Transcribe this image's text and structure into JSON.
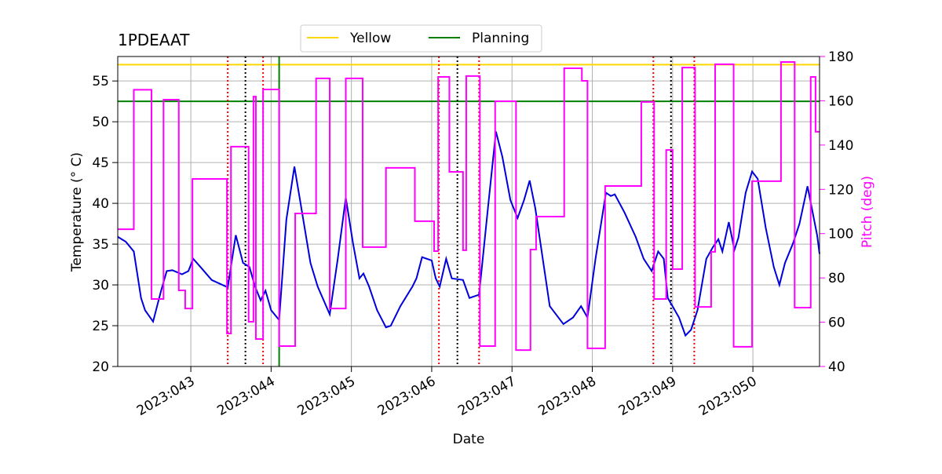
{
  "chart_data": {
    "type": "line",
    "title": "1PDEAAT",
    "xlabel": "Date",
    "ylabel": "Temperature (° C)",
    "y2label": "Pitch (deg)",
    "y2color": "#ff00ff",
    "xlim": [
      42.09,
      50.83
    ],
    "xticks": [
      {
        "value": 43,
        "label": "2023:043"
      },
      {
        "value": 44,
        "label": "2023:044"
      },
      {
        "value": 45,
        "label": "2023:045"
      },
      {
        "value": 46,
        "label": "2023:046"
      },
      {
        "value": 47,
        "label": "2023:047"
      },
      {
        "value": 48,
        "label": "2023:048"
      },
      {
        "value": 49,
        "label": "2023:049"
      },
      {
        "value": 50,
        "label": "2023:050"
      }
    ],
    "ylim": [
      20,
      58
    ],
    "yticks": [
      20,
      25,
      30,
      35,
      40,
      45,
      50,
      55
    ],
    "y2lim": [
      40,
      180
    ],
    "y2ticks": [
      40,
      60,
      80,
      100,
      120,
      140,
      160,
      180
    ],
    "grid": true,
    "legend": "top",
    "hlines": [
      {
        "name": "Yellow",
        "value": 57,
        "color": "#ffd700"
      },
      {
        "name": "Planning",
        "value": 52.5,
        "color": "#008000"
      }
    ],
    "vlines": [
      {
        "x": 43.46,
        "color": "#ff0000",
        "style": "dotted"
      },
      {
        "x": 43.9,
        "color": "#ff0000",
        "style": "dotted"
      },
      {
        "x": 46.09,
        "color": "#ff0000",
        "style": "dotted"
      },
      {
        "x": 46.59,
        "color": "#ff0000",
        "style": "dotted"
      },
      {
        "x": 48.76,
        "color": "#ff0000",
        "style": "dotted"
      },
      {
        "x": 49.27,
        "color": "#ff0000",
        "style": "dotted"
      },
      {
        "x": 43.68,
        "color": "#000000",
        "style": "dotted"
      },
      {
        "x": 46.32,
        "color": "#000000",
        "style": "dotted"
      },
      {
        "x": 48.98,
        "color": "#000000",
        "style": "dotted"
      },
      {
        "x": 44.1,
        "color": "#008000",
        "style": "solid"
      }
    ],
    "series": [
      {
        "color": "#0000dd",
        "axis": "y",
        "step": false,
        "x": [
          42.09,
          42.19,
          42.29,
          42.38,
          42.43,
          42.53,
          42.63,
          42.7,
          42.77,
          42.89,
          42.97,
          43.03,
          43.12,
          43.26,
          43.46,
          43.56,
          43.65,
          43.73,
          43.8,
          43.87,
          43.93,
          44.0,
          44.1,
          44.19,
          44.29,
          44.36,
          44.49,
          44.58,
          44.73,
          44.83,
          44.93,
          45.02,
          45.1,
          45.15,
          45.22,
          45.32,
          45.43,
          45.49,
          45.61,
          45.76,
          45.81,
          45.88,
          46.0,
          46.05,
          46.1,
          46.18,
          46.25,
          46.39,
          46.47,
          46.59,
          46.7,
          46.8,
          46.88,
          46.98,
          47.07,
          47.15,
          47.22,
          47.29,
          47.47,
          47.64,
          47.76,
          47.86,
          47.94,
          48.04,
          48.17,
          48.23,
          48.28,
          48.4,
          48.54,
          48.64,
          48.74,
          48.82,
          48.89,
          48.94,
          49.01,
          49.08,
          49.16,
          49.23,
          49.31,
          49.42,
          49.5,
          49.57,
          49.62,
          49.7,
          49.77,
          49.82,
          49.91,
          49.99,
          50.06,
          50.16,
          50.26,
          50.33,
          50.4,
          50.5,
          50.58,
          50.68,
          50.8,
          50.83
        ],
        "values": [
          35.9,
          35.3,
          34.1,
          28.4,
          26.9,
          25.5,
          29.3,
          31.7,
          31.8,
          31.3,
          31.7,
          33.2,
          32.2,
          30.6,
          29.7,
          36.1,
          32.7,
          32.2,
          29.8,
          28.1,
          29.3,
          26.9,
          25.7,
          38.0,
          44.5,
          40.4,
          32.7,
          29.8,
          26.4,
          33.2,
          40.7,
          35.1,
          30.8,
          31.4,
          29.8,
          26.9,
          24.8,
          25.0,
          27.4,
          29.8,
          30.8,
          33.4,
          33.0,
          30.8,
          29.8,
          33.2,
          30.8,
          30.6,
          28.4,
          28.8,
          39.4,
          48.8,
          45.7,
          40.4,
          38.2,
          40.4,
          42.8,
          39.4,
          27.4,
          25.2,
          26.0,
          27.4,
          26.0,
          33.2,
          41.3,
          40.9,
          41.1,
          38.9,
          35.9,
          33.2,
          31.7,
          34.1,
          33.2,
          28.4,
          27.2,
          26.0,
          23.8,
          24.5,
          26.9,
          33.2,
          34.6,
          35.6,
          34.1,
          37.7,
          34.3,
          35.8,
          41.3,
          43.9,
          43.0,
          37.0,
          32.2,
          30.0,
          32.7,
          35.1,
          37.5,
          42.1,
          36.1,
          33.8
        ]
      },
      {
        "color": "#ff00ff",
        "axis": "y2",
        "step": true,
        "x": [
          42.09,
          42.29,
          42.51,
          42.66,
          42.85,
          42.93,
          43.02,
          43.45,
          43.5,
          43.72,
          43.78,
          43.81,
          43.9,
          44.1,
          44.3,
          44.56,
          44.73,
          44.93,
          45.14,
          45.43,
          45.79,
          46.03,
          46.08,
          46.22,
          46.39,
          46.43,
          46.6,
          46.79,
          47.05,
          47.23,
          47.3,
          47.65,
          47.87,
          47.94,
          48.16,
          48.61,
          48.77,
          48.92,
          49.0,
          49.12,
          49.28,
          49.48,
          49.53,
          49.76,
          49.99,
          50.35,
          50.52,
          50.72,
          50.78
        ],
        "values": [
          102,
          165,
          70.5,
          160.5,
          74.4,
          66.2,
          124.7,
          54.9,
          139.3,
          60.2,
          161.9,
          52.4,
          165.1,
          49.2,
          109.1,
          170.1,
          66.2,
          170.1,
          93.9,
          129.7,
          105.6,
          92.1,
          170.8,
          127.9,
          92.5,
          171.2,
          49.2,
          159.8,
          47.4,
          92.8,
          107.7,
          174.7,
          169,
          48.2,
          121.5,
          159.5,
          70.5,
          137.8,
          84,
          175,
          66.9,
          91.8,
          176.5,
          48.9,
          123.7,
          177.5,
          66.6,
          170.8,
          146
        ]
      }
    ]
  }
}
